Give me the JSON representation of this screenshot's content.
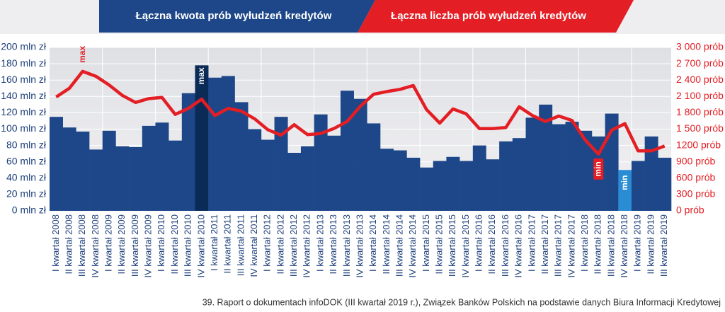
{
  "chart_data": {
    "type": "bar-line",
    "header": [
      "Łączna kwota prób wyłudzeń kredytów",
      "Łączna liczba prób wyłudzeń kredytów"
    ],
    "source": "39. Raport o dokumentach infoDOK (III kwartał 2019 r.), Związek Banków Polskich na podstawie danych Biura Informacji Kredytowej",
    "categories": [
      "I kwartał 2008",
      "II kwartał 2008",
      "III kwartał 2008",
      "IV kwartał 2008",
      "I kwartał 2009",
      "II kwartał 2009",
      "III kwartał 2009",
      "IV kwartał 2009",
      "I kwartał 2010",
      "II kwartał 2010",
      "III kwartał 2010",
      "IV kwartał 2010",
      "I kwartał 2011",
      "II kwartał 2011",
      "III kwartał 2011",
      "IV kwartał 2011",
      "I kwartał 2012",
      "II kwartał 2012",
      "III kwartał 2012",
      "IV kwartał 2012",
      "I kwartał 2013",
      "II kwartał 2013",
      "III kwartał 2013",
      "IV kwartał 2013",
      "I kwartał 2014",
      "II kwartał 2014",
      "III kwartał 2014",
      "IV kwartał 2014",
      "I kwartał 2015",
      "II kwartał 2015",
      "III kwartał 2015",
      "IV kwartał 2015",
      "I kwartał 2016",
      "II kwartał 2016",
      "III kwartał 2016",
      "IV kwartał 2016",
      "I kwartał 2017",
      "II kwartał 2017",
      "III kwartał 2017",
      "IV kwartał 2017",
      "I kwartał 2018",
      "II kwartał 2018",
      "III kwartał 2018",
      "IV kwartał 2018",
      "I kwartał 2019",
      "II kwartał 2019",
      "III kwartał 2019"
    ],
    "series": [
      {
        "name": "Łączna kwota prób wyłudzeń kredytów",
        "type": "bar",
        "color": "#1d4788",
        "max_color": "#0b2b57",
        "min_color": "#2a8dd4",
        "max_label": "max",
        "min_label": "min",
        "values": [
          115,
          102,
          97,
          75,
          98,
          79,
          78,
          104,
          108,
          86,
          144,
          178,
          163,
          165,
          133,
          100,
          87,
          115,
          71,
          79,
          118,
          92,
          147,
          137,
          107,
          76,
          74,
          65,
          53,
          61,
          66,
          61,
          80,
          63,
          85,
          89,
          114,
          130,
          106,
          109,
          98,
          91,
          119,
          50,
          61,
          91,
          65
        ]
      },
      {
        "name": "Łączna liczba prób wyłudzeń kredytów",
        "type": "line",
        "axis": "y2",
        "color": "#e31e24",
        "max_label": "max",
        "min_label": "min",
        "values": [
          2090,
          2250,
          2560,
          2470,
          2310,
          2120,
          1990,
          2060,
          2080,
          1770,
          1880,
          2050,
          1750,
          1880,
          1830,
          1690,
          1490,
          1390,
          1580,
          1400,
          1420,
          1510,
          1640,
          1920,
          2140,
          2190,
          2230,
          2300,
          1860,
          1610,
          1870,
          1780,
          1510,
          1510,
          1530,
          1910,
          1750,
          1640,
          1740,
          1660,
          1300,
          1040,
          1480,
          1600,
          1100,
          1100,
          1190
        ]
      }
    ],
    "ylim": [
      0,
      200
    ],
    "yticks": [
      {
        "value": 0,
        "label": "0 mln zł"
      },
      {
        "value": 20,
        "label": "20 mln zł"
      },
      {
        "value": 40,
        "label": "40 mln zł"
      },
      {
        "value": 60,
        "label": "60 mln zł"
      },
      {
        "value": 80,
        "label": "80 mln zł"
      },
      {
        "value": 100,
        "label": "100 mln zł"
      },
      {
        "value": 120,
        "label": "120 mln zł"
      },
      {
        "value": 140,
        "label": "140 mln zł"
      },
      {
        "value": 160,
        "label": "160 mln zł"
      },
      {
        "value": 180,
        "label": "180 mln zł"
      },
      {
        "value": 200,
        "label": "200 mln zł"
      }
    ],
    "y2lim": [
      0,
      3000
    ],
    "y2ticks": [
      {
        "value": 0,
        "label": "0 prób"
      },
      {
        "value": 300,
        "label": "300 prób"
      },
      {
        "value": 600,
        "label": "600 prób"
      },
      {
        "value": 900,
        "label": "900 prób"
      },
      {
        "value": 1200,
        "label": "1200 prób"
      },
      {
        "value": 1500,
        "label": "1 500 prób"
      },
      {
        "value": 1800,
        "label": "1 800 prób"
      },
      {
        "value": 2100,
        "label": "2 100 prób"
      },
      {
        "value": 2400,
        "label": "2 400 prób"
      },
      {
        "value": 2700,
        "label": "2 700 prób"
      },
      {
        "value": 3000,
        "label": "3 000 prób"
      }
    ],
    "grid": true
  }
}
